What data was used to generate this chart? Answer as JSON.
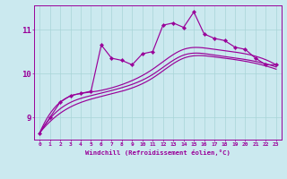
{
  "background_color": "#cbe9ef",
  "line_color": "#990099",
  "grid_color": "#a8d4d8",
  "xlabel": "Windchill (Refroidissement éolien,°C)",
  "xticks": [
    0,
    1,
    2,
    3,
    4,
    5,
    6,
    7,
    8,
    9,
    10,
    11,
    12,
    13,
    14,
    15,
    16,
    17,
    18,
    19,
    20,
    21,
    22,
    23
  ],
  "yticks": [
    9,
    10,
    11
  ],
  "ylim": [
    8.5,
    11.55
  ],
  "xlim": [
    -0.5,
    23.5
  ],
  "series1_x": [
    0,
    1,
    2,
    3,
    4,
    5,
    6,
    7,
    8,
    9,
    10,
    11,
    12,
    13,
    14,
    15,
    16,
    17,
    18,
    19,
    20,
    21,
    22,
    23
  ],
  "series1_y": [
    8.65,
    9.0,
    9.35,
    9.5,
    9.55,
    9.6,
    10.65,
    10.35,
    10.3,
    10.2,
    10.45,
    10.5,
    11.1,
    11.15,
    11.05,
    11.4,
    10.9,
    10.8,
    10.75,
    10.6,
    10.55,
    10.35,
    10.2,
    10.2
  ],
  "smooth1_x": [
    0,
    2,
    5,
    8,
    11,
    14,
    17,
    20,
    23
  ],
  "smooth1_y": [
    8.65,
    9.35,
    9.58,
    9.75,
    10.1,
    10.55,
    10.55,
    10.45,
    10.2
  ],
  "smooth2_x": [
    0,
    2,
    5,
    8,
    11,
    14,
    17,
    20,
    23
  ],
  "smooth2_y": [
    8.65,
    9.2,
    9.5,
    9.68,
    9.98,
    10.42,
    10.42,
    10.32,
    10.15
  ],
  "smooth3_x": [
    0,
    2,
    5,
    8,
    11,
    14,
    17,
    20,
    23
  ],
  "smooth3_y": [
    8.65,
    9.1,
    9.42,
    9.6,
    9.9,
    10.35,
    10.38,
    10.28,
    10.1
  ]
}
